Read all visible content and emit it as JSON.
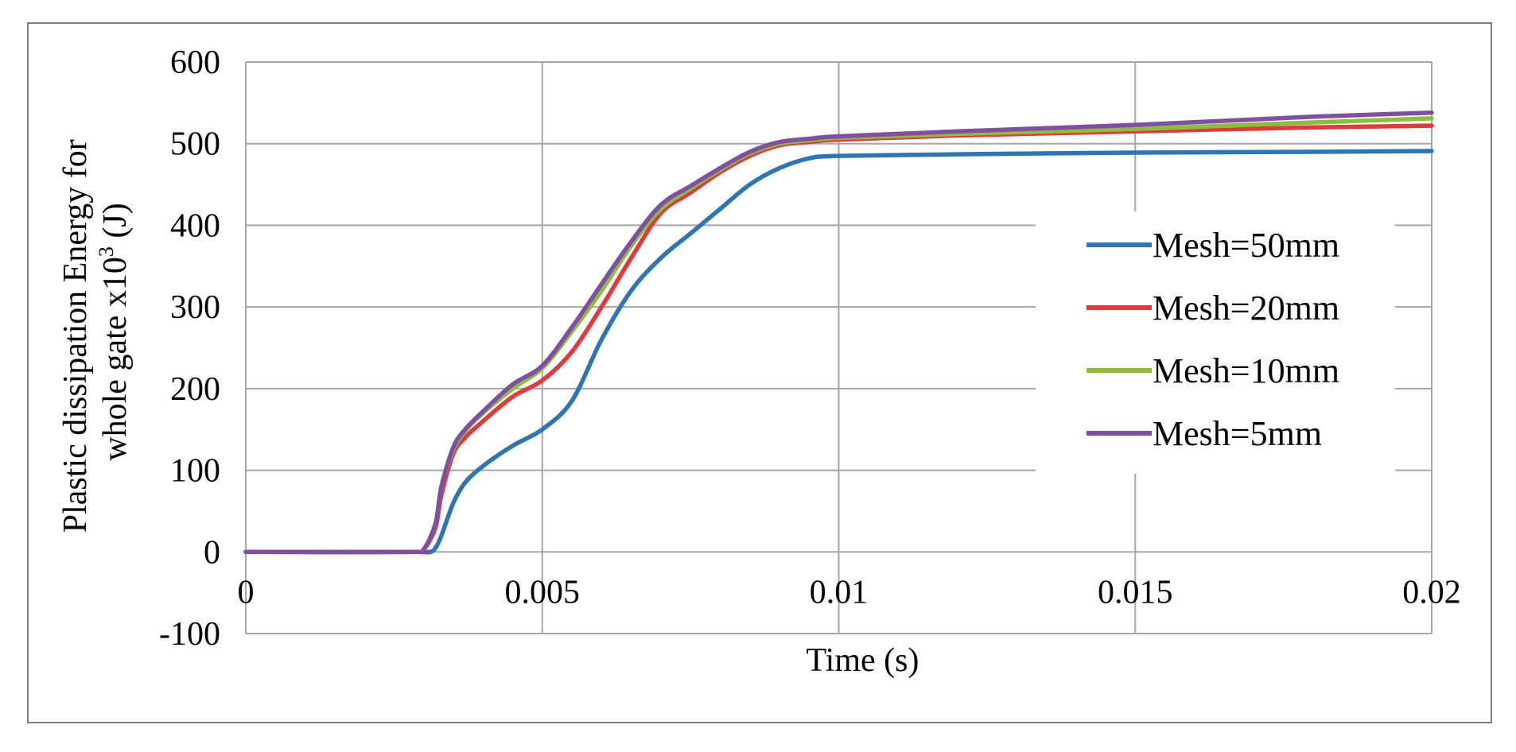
{
  "chart_data": {
    "type": "line",
    "title": "",
    "xlabel": "Time (s)",
    "ylabel_line1": "Plastic dissipation Energy for",
    "ylabel_line2_prefix": "whole gate x10",
    "ylabel_sup": "3",
    "ylabel_line2_suffix": " (J)",
    "xlim": [
      0,
      0.02
    ],
    "ylim": [
      -100,
      600
    ],
    "x_ticks": [
      0,
      0.005,
      0.01,
      0.015,
      0.02
    ],
    "x_tick_labels": [
      "0",
      "0.005",
      "0.01",
      "0.015",
      "0.02"
    ],
    "y_ticks": [
      -100,
      0,
      100,
      200,
      300,
      400,
      500,
      600
    ],
    "y_tick_labels": [
      "-100",
      "0",
      "100",
      "200",
      "300",
      "400",
      "500",
      "600"
    ],
    "grid": true,
    "legend_position": "right",
    "series": [
      {
        "name": "Mesh=50mm",
        "color": "#2e75b6",
        "points": [
          [
            0,
            0
          ],
          [
            0.0028,
            0
          ],
          [
            0.0031,
            0
          ],
          [
            0.0032,
            5
          ],
          [
            0.0033,
            20
          ],
          [
            0.0035,
            60
          ],
          [
            0.0037,
            85
          ],
          [
            0.004,
            105
          ],
          [
            0.0045,
            130
          ],
          [
            0.005,
            150
          ],
          [
            0.0055,
            185
          ],
          [
            0.006,
            260
          ],
          [
            0.0065,
            320
          ],
          [
            0.007,
            360
          ],
          [
            0.0075,
            390
          ],
          [
            0.008,
            420
          ],
          [
            0.0085,
            450
          ],
          [
            0.009,
            470
          ],
          [
            0.0095,
            482
          ],
          [
            0.01,
            485
          ],
          [
            0.012,
            487
          ],
          [
            0.015,
            489
          ],
          [
            0.018,
            490
          ],
          [
            0.02,
            491
          ]
        ]
      },
      {
        "name": "Mesh=20mm",
        "color": "#e0393e",
        "points": [
          [
            0,
            0
          ],
          [
            0.0028,
            0
          ],
          [
            0.003,
            3
          ],
          [
            0.0032,
            30
          ],
          [
            0.0033,
            70
          ],
          [
            0.0035,
            120
          ],
          [
            0.0037,
            140
          ],
          [
            0.004,
            160
          ],
          [
            0.0045,
            190
          ],
          [
            0.005,
            210
          ],
          [
            0.0055,
            245
          ],
          [
            0.006,
            300
          ],
          [
            0.0065,
            360
          ],
          [
            0.007,
            415
          ],
          [
            0.0075,
            440
          ],
          [
            0.008,
            465
          ],
          [
            0.0085,
            485
          ],
          [
            0.009,
            498
          ],
          [
            0.0095,
            502
          ],
          [
            0.01,
            505
          ],
          [
            0.012,
            510
          ],
          [
            0.015,
            515
          ],
          [
            0.018,
            520
          ],
          [
            0.02,
            522
          ]
        ]
      },
      {
        "name": "Mesh=10mm",
        "color": "#8ebd3a",
        "points": [
          [
            0,
            0
          ],
          [
            0.0028,
            0
          ],
          [
            0.003,
            3
          ],
          [
            0.0032,
            35
          ],
          [
            0.0033,
            80
          ],
          [
            0.0035,
            125
          ],
          [
            0.0037,
            148
          ],
          [
            0.004,
            170
          ],
          [
            0.0045,
            200
          ],
          [
            0.005,
            225
          ],
          [
            0.0055,
            270
          ],
          [
            0.006,
            320
          ],
          [
            0.0065,
            375
          ],
          [
            0.007,
            420
          ],
          [
            0.0075,
            445
          ],
          [
            0.008,
            468
          ],
          [
            0.0085,
            488
          ],
          [
            0.009,
            500
          ],
          [
            0.0095,
            504
          ],
          [
            0.01,
            507
          ],
          [
            0.012,
            512
          ],
          [
            0.015,
            518
          ],
          [
            0.018,
            526
          ],
          [
            0.02,
            531
          ]
        ]
      },
      {
        "name": "Mesh=5mm",
        "color": "#7f4fa0",
        "points": [
          [
            0,
            0
          ],
          [
            0.0028,
            0
          ],
          [
            0.003,
            3
          ],
          [
            0.0032,
            35
          ],
          [
            0.0033,
            80
          ],
          [
            0.0035,
            128
          ],
          [
            0.0037,
            150
          ],
          [
            0.004,
            172
          ],
          [
            0.0045,
            205
          ],
          [
            0.005,
            228
          ],
          [
            0.0055,
            275
          ],
          [
            0.006,
            328
          ],
          [
            0.0065,
            380
          ],
          [
            0.007,
            425
          ],
          [
            0.0075,
            448
          ],
          [
            0.008,
            470
          ],
          [
            0.0085,
            490
          ],
          [
            0.009,
            502
          ],
          [
            0.0095,
            506
          ],
          [
            0.01,
            509
          ],
          [
            0.012,
            515
          ],
          [
            0.015,
            523
          ],
          [
            0.018,
            533
          ],
          [
            0.02,
            538
          ]
        ]
      }
    ]
  }
}
